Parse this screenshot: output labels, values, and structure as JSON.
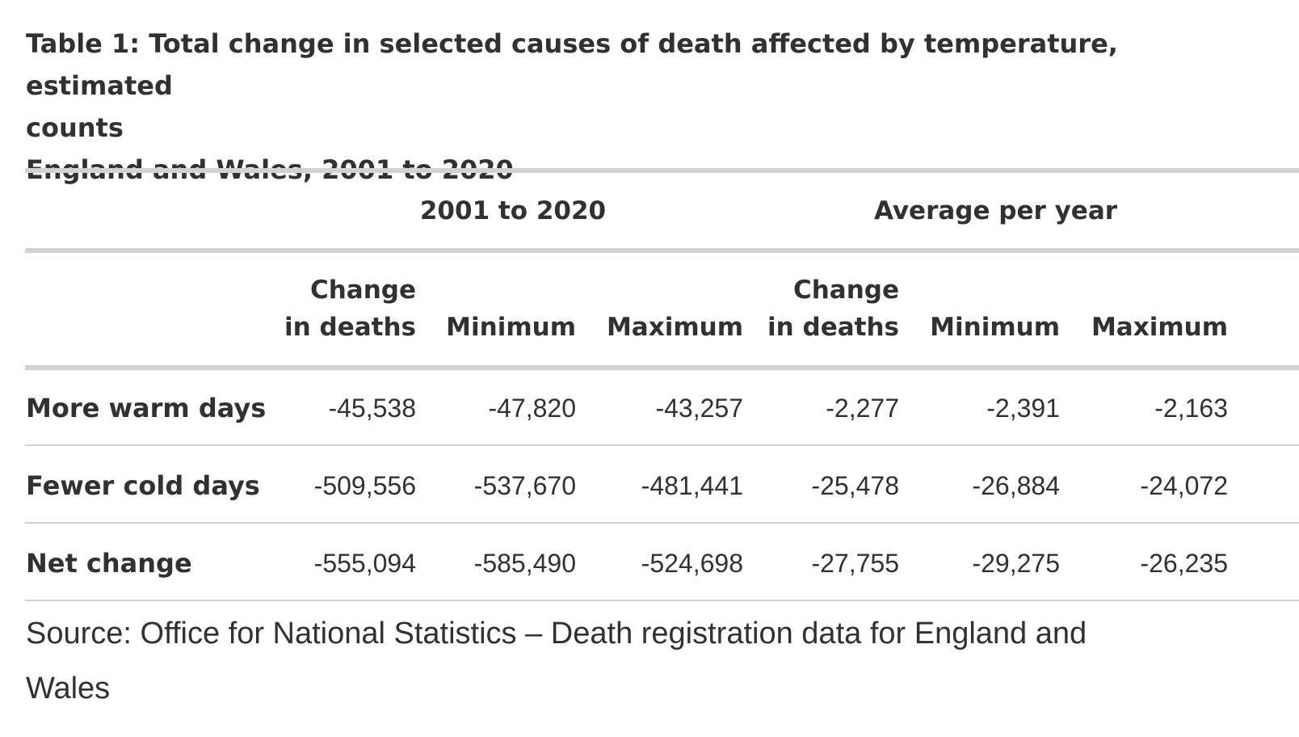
{
  "title": {
    "line1": "Table 1: Total change in selected causes of death affected by temperature, estimated",
    "line2": "counts",
    "subtitle": "England and Wales, 2001 to 2020"
  },
  "table": {
    "groups": [
      "2001 to 2020",
      "Average per year"
    ],
    "columns": [
      {
        "line1": "Change",
        "line2": "in deaths"
      },
      {
        "line1": "",
        "line2": "Minimum"
      },
      {
        "line1": "",
        "line2": "Maximum"
      },
      {
        "line1": "Change",
        "line2": "in deaths"
      },
      {
        "line1": "",
        "line2": "Minimum"
      },
      {
        "line1": "",
        "line2": "Maximum"
      }
    ],
    "rows": [
      {
        "label": "More warm days",
        "values": [
          "-45,538",
          "-47,820",
          "-43,257",
          "-2,277",
          "-2,391",
          "-2,163"
        ]
      },
      {
        "label": "Fewer cold days",
        "values": [
          "-509,556",
          "-537,670",
          "-481,441",
          "-25,478",
          "-26,884",
          "-24,072"
        ]
      },
      {
        "label": "Net change",
        "values": [
          "-555,094",
          "-585,490",
          "-524,698",
          "-27,755",
          "-29,275",
          "-26,235"
        ]
      }
    ]
  },
  "source": {
    "line1": "Source: Office for National Statistics – Death registration data for England and",
    "line2": "Wales"
  },
  "colors": {
    "text": "#323132",
    "rule": "#d0d2d3"
  }
}
